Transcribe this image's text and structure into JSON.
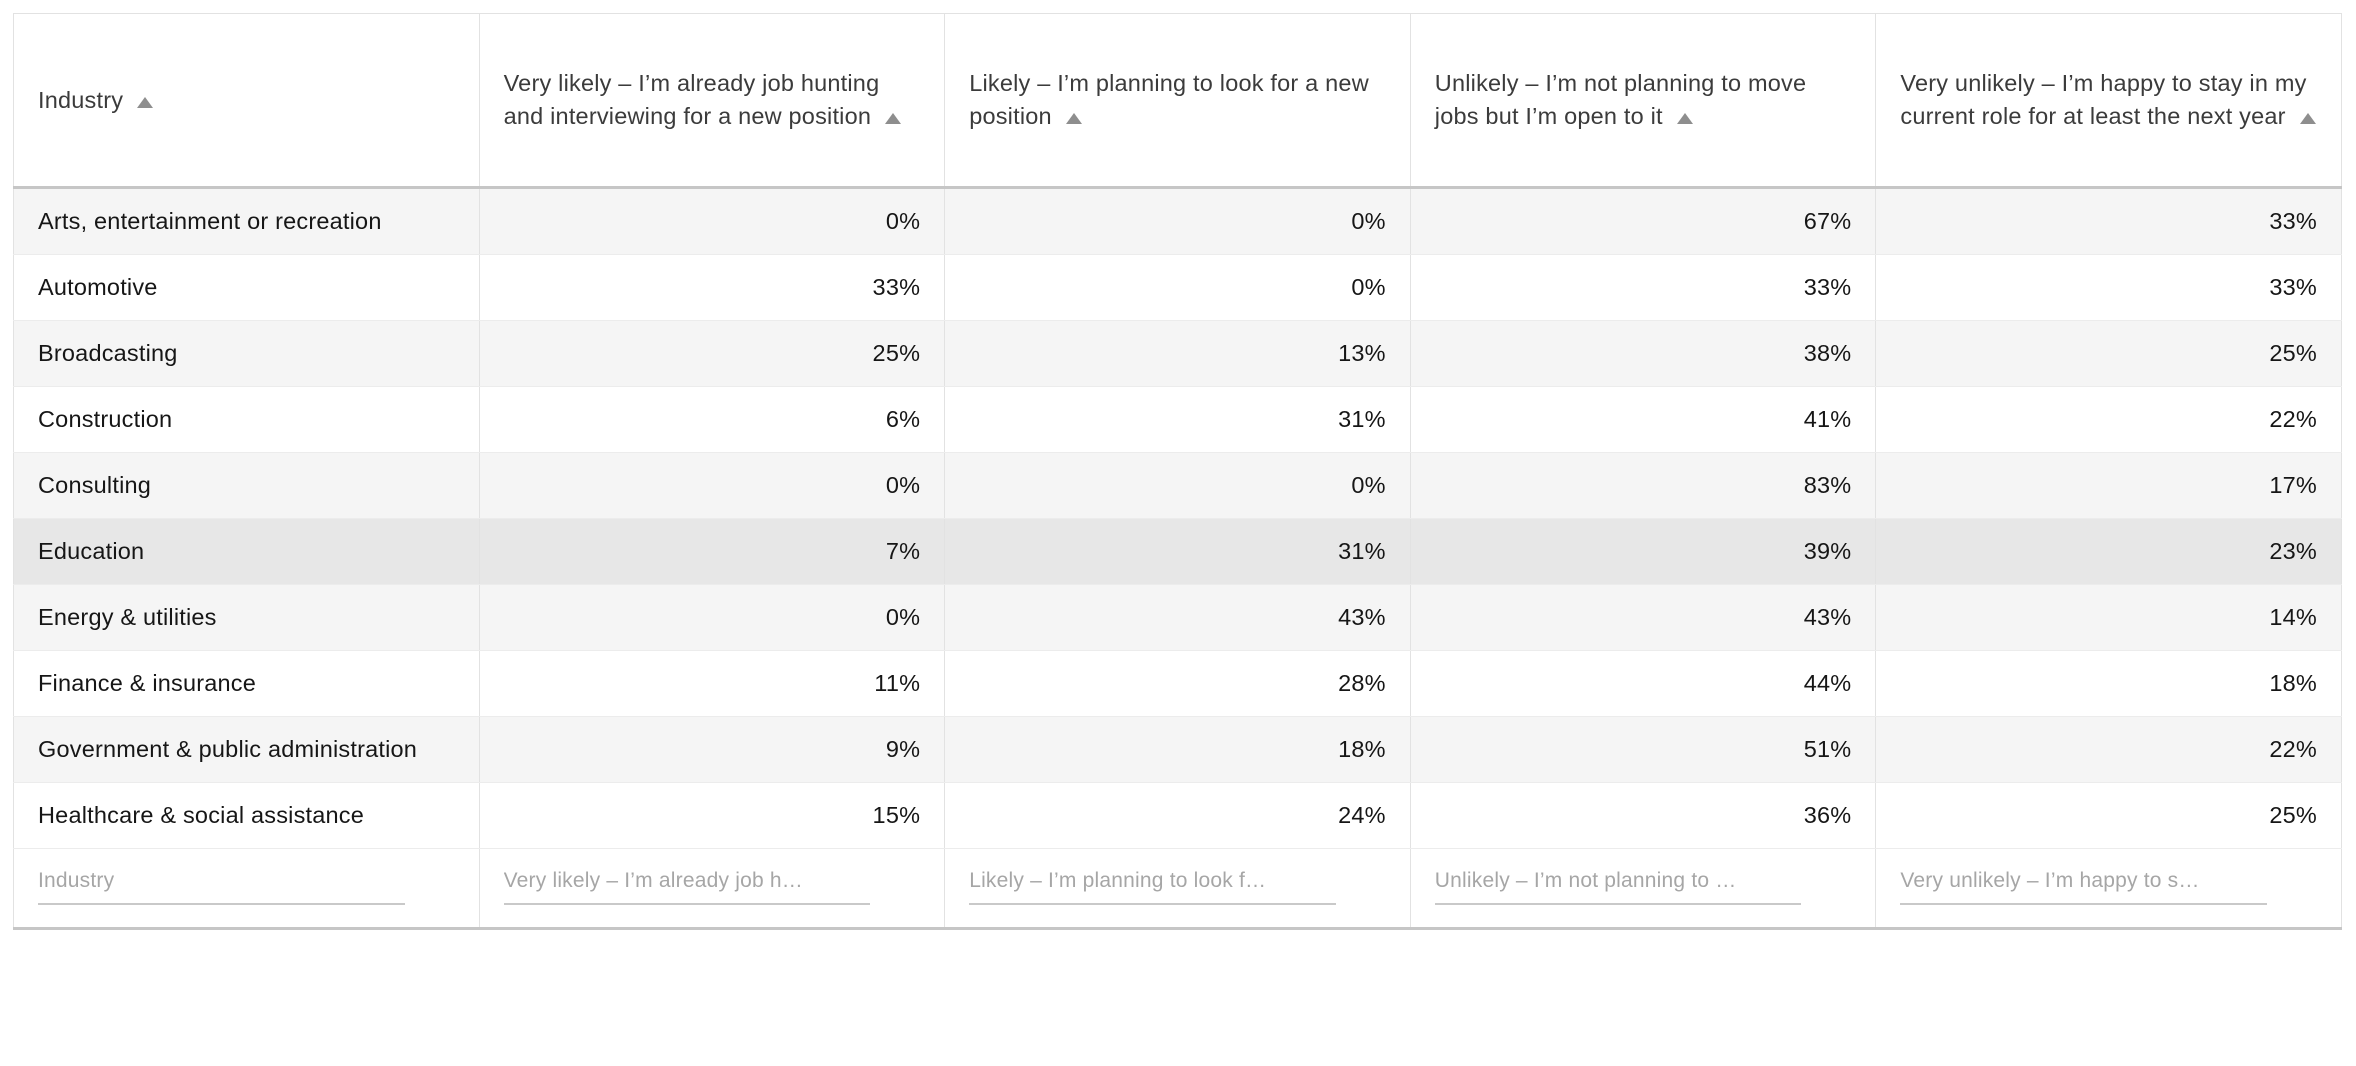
{
  "table": {
    "columns": [
      {
        "label": "Industry",
        "sort": "ascending"
      },
      {
        "label": "Very likely – I’m already job hunting and interviewing for a new position",
        "sort": "ascending"
      },
      {
        "label": "Likely – I’m planning to look for a new position",
        "sort": "ascending"
      },
      {
        "label": "Unlikely – I’m not planning to move jobs but I’m open to it",
        "sort": "ascending"
      },
      {
        "label": "Very unlikely – I’m happy to stay in my current role for at least the next year",
        "sort": "ascending"
      }
    ],
    "rows": [
      {
        "industry": "Arts, entertainment or recreation",
        "values": [
          "0%",
          "0%",
          "67%",
          "33%"
        ]
      },
      {
        "industry": "Automotive",
        "values": [
          "33%",
          "0%",
          "33%",
          "33%"
        ]
      },
      {
        "industry": "Broadcasting",
        "values": [
          "25%",
          "13%",
          "38%",
          "25%"
        ]
      },
      {
        "industry": "Construction",
        "values": [
          "6%",
          "31%",
          "41%",
          "22%"
        ]
      },
      {
        "industry": "Consulting",
        "values": [
          "0%",
          "0%",
          "83%",
          "17%"
        ]
      },
      {
        "industry": "Education",
        "values": [
          "7%",
          "31%",
          "39%",
          "23%"
        ],
        "highlighted": true
      },
      {
        "industry": "Energy & utilities",
        "values": [
          "0%",
          "43%",
          "43%",
          "14%"
        ]
      },
      {
        "industry": "Finance & insurance",
        "values": [
          "11%",
          "28%",
          "44%",
          "18%"
        ]
      },
      {
        "industry": "Government & public administration",
        "values": [
          "9%",
          "18%",
          "51%",
          "22%"
        ]
      },
      {
        "industry": "Healthcare & social assistance",
        "values": [
          "15%",
          "24%",
          "36%",
          "25%"
        ]
      }
    ],
    "filters": [
      {
        "placeholder": "Industry"
      },
      {
        "placeholder": "Very likely – I’m already job h…"
      },
      {
        "placeholder": "Likely – I’m planning to look f…"
      },
      {
        "placeholder": "Unlikely – I’m not planning to …"
      },
      {
        "placeholder": "Very unlikely – I’m happy to s…"
      }
    ],
    "colors": {
      "row_stripe": "#f5f5f5",
      "row_highlight": "#e7e7e7",
      "header_divider": "#c6c6c6",
      "cell_border": "#e2e2e2",
      "sort_arrow": "#8e8e8e",
      "placeholder_text": "#a6a6a6"
    }
  }
}
